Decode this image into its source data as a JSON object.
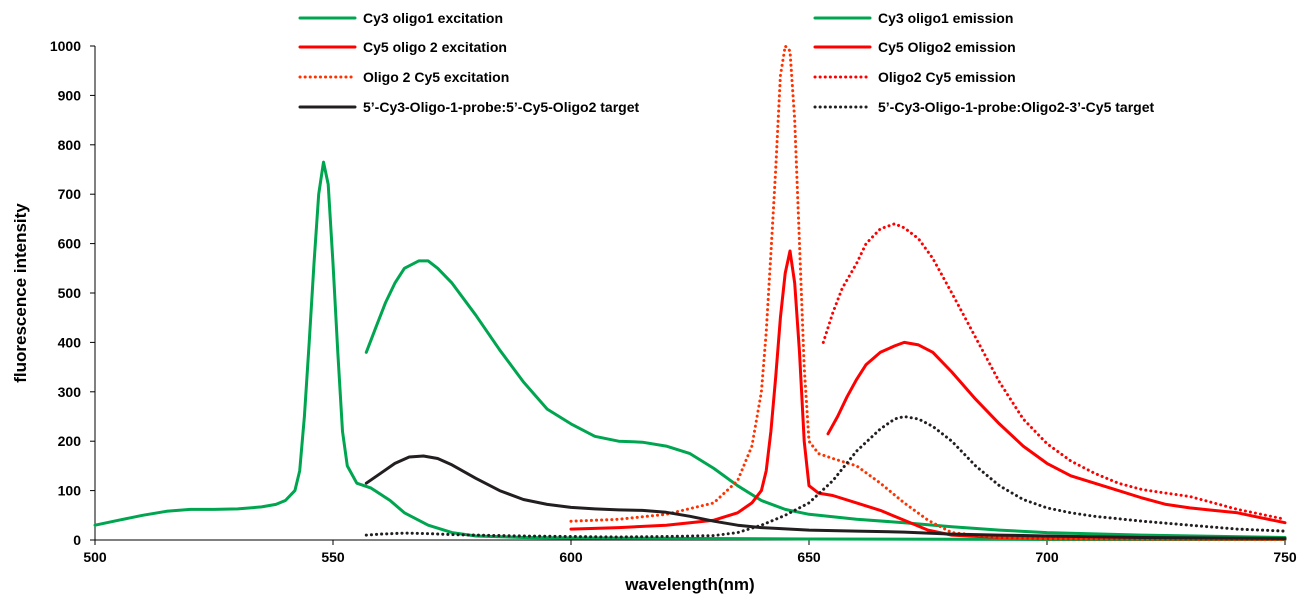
{
  "chart_data": {
    "type": "line",
    "title": "",
    "xlabel": "wavelength(nm)",
    "ylabel": "fluorescence intensity",
    "xlim": [
      500,
      750
    ],
    "ylim": [
      0,
      1000
    ],
    "x_ticks": [
      "500",
      "550",
      "600",
      "650",
      "700",
      "750"
    ],
    "y_ticks": [
      "0",
      "100",
      "200",
      "300",
      "400",
      "500",
      "600",
      "700",
      "800",
      "900",
      "1000"
    ],
    "grid": false,
    "legend_position": "top",
    "series": [
      {
        "name": "Cy3 oligo1 excitation",
        "color": "#00a550",
        "style": "solid",
        "points": [
          [
            500,
            30
          ],
          [
            505,
            40
          ],
          [
            510,
            50
          ],
          [
            515,
            58
          ],
          [
            520,
            62
          ],
          [
            525,
            62
          ],
          [
            530,
            63
          ],
          [
            535,
            67
          ],
          [
            538,
            72
          ],
          [
            540,
            80
          ],
          [
            542,
            100
          ],
          [
            543,
            140
          ],
          [
            544,
            250
          ],
          [
            545,
            400
          ],
          [
            546,
            560
          ],
          [
            547,
            700
          ],
          [
            548,
            765
          ],
          [
            549,
            720
          ],
          [
            550,
            560
          ],
          [
            551,
            380
          ],
          [
            552,
            220
          ],
          [
            553,
            150
          ],
          [
            555,
            115
          ],
          [
            558,
            105
          ],
          [
            562,
            80
          ],
          [
            565,
            55
          ],
          [
            570,
            30
          ],
          [
            575,
            15
          ],
          [
            580,
            8
          ],
          [
            590,
            5
          ],
          [
            600,
            4
          ],
          [
            650,
            2
          ],
          [
            700,
            1
          ],
          [
            750,
            1
          ]
        ]
      },
      {
        "name": "Cy3 oligo1 emission",
        "color": "#00a550",
        "style": "solid",
        "points": [
          [
            557,
            380
          ],
          [
            559,
            430
          ],
          [
            561,
            480
          ],
          [
            563,
            520
          ],
          [
            565,
            550
          ],
          [
            568,
            565
          ],
          [
            570,
            565
          ],
          [
            572,
            550
          ],
          [
            575,
            520
          ],
          [
            580,
            455
          ],
          [
            585,
            385
          ],
          [
            590,
            320
          ],
          [
            595,
            265
          ],
          [
            600,
            235
          ],
          [
            605,
            210
          ],
          [
            610,
            200
          ],
          [
            615,
            198
          ],
          [
            620,
            190
          ],
          [
            625,
            175
          ],
          [
            630,
            145
          ],
          [
            635,
            110
          ],
          [
            640,
            80
          ],
          [
            645,
            62
          ],
          [
            650,
            52
          ],
          [
            660,
            42
          ],
          [
            670,
            35
          ],
          [
            680,
            27
          ],
          [
            690,
            20
          ],
          [
            700,
            15
          ],
          [
            720,
            10
          ],
          [
            750,
            5
          ]
        ]
      },
      {
        "name": "Cy5 oligo 2 excitation",
        "color": "#ff0000",
        "style": "solid",
        "points": [
          [
            600,
            22
          ],
          [
            610,
            25
          ],
          [
            620,
            30
          ],
          [
            630,
            40
          ],
          [
            635,
            55
          ],
          [
            638,
            75
          ],
          [
            640,
            100
          ],
          [
            641,
            140
          ],
          [
            642,
            220
          ],
          [
            643,
            330
          ],
          [
            644,
            450
          ],
          [
            645,
            540
          ],
          [
            646,
            585
          ],
          [
            647,
            520
          ],
          [
            648,
            380
          ],
          [
            649,
            200
          ],
          [
            650,
            110
          ],
          [
            652,
            95
          ],
          [
            655,
            90
          ],
          [
            660,
            75
          ],
          [
            665,
            60
          ],
          [
            670,
            40
          ],
          [
            675,
            20
          ],
          [
            680,
            10
          ],
          [
            690,
            5
          ],
          [
            700,
            3
          ],
          [
            750,
            2
          ]
        ]
      },
      {
        "name": "Cy5 Oligo2 emission",
        "color": "#ff0000",
        "style": "solid",
        "points": [
          [
            654,
            215
          ],
          [
            656,
            250
          ],
          [
            658,
            290
          ],
          [
            660,
            325
          ],
          [
            662,
            355
          ],
          [
            665,
            380
          ],
          [
            668,
            393
          ],
          [
            670,
            400
          ],
          [
            673,
            395
          ],
          [
            676,
            380
          ],
          [
            680,
            340
          ],
          [
            685,
            285
          ],
          [
            690,
            235
          ],
          [
            695,
            190
          ],
          [
            700,
            155
          ],
          [
            705,
            130
          ],
          [
            710,
            115
          ],
          [
            715,
            100
          ],
          [
            720,
            85
          ],
          [
            725,
            72
          ],
          [
            730,
            65
          ],
          [
            735,
            60
          ],
          [
            740,
            55
          ],
          [
            745,
            45
          ],
          [
            750,
            35
          ]
        ]
      },
      {
        "name": "Oligo 2 Cy5 excitation",
        "color": "#ff3300",
        "style": "dotted",
        "points": [
          [
            600,
            38
          ],
          [
            610,
            42
          ],
          [
            620,
            52
          ],
          [
            630,
            75
          ],
          [
            635,
            120
          ],
          [
            638,
            190
          ],
          [
            640,
            300
          ],
          [
            641,
            420
          ],
          [
            642,
            580
          ],
          [
            643,
            750
          ],
          [
            644,
            940
          ],
          [
            645,
            1000
          ],
          [
            646,
            990
          ],
          [
            647,
            850
          ],
          [
            648,
            600
          ],
          [
            649,
            350
          ],
          [
            650,
            200
          ],
          [
            652,
            175
          ],
          [
            655,
            165
          ],
          [
            660,
            150
          ],
          [
            665,
            115
          ],
          [
            670,
            75
          ],
          [
            675,
            40
          ],
          [
            680,
            15
          ],
          [
            690,
            5
          ],
          [
            700,
            2
          ],
          [
            750,
            1
          ]
        ]
      },
      {
        "name": "Oligo2 Cy5 emission",
        "color": "#ff0000",
        "style": "dotted",
        "points": [
          [
            653,
            400
          ],
          [
            655,
            460
          ],
          [
            657,
            510
          ],
          [
            660,
            560
          ],
          [
            662,
            600
          ],
          [
            665,
            630
          ],
          [
            668,
            640
          ],
          [
            670,
            632
          ],
          [
            673,
            610
          ],
          [
            676,
            570
          ],
          [
            680,
            500
          ],
          [
            685,
            410
          ],
          [
            690,
            320
          ],
          [
            695,
            245
          ],
          [
            700,
            195
          ],
          [
            705,
            160
          ],
          [
            710,
            135
          ],
          [
            715,
            115
          ],
          [
            720,
            102
          ],
          [
            725,
            95
          ],
          [
            730,
            88
          ],
          [
            735,
            75
          ],
          [
            740,
            62
          ],
          [
            745,
            52
          ],
          [
            750,
            42
          ]
        ]
      },
      {
        "name": "5’-Cy3-Oligo-1-probe:5’-Cy5-Oligo2 target",
        "color": "#231f20",
        "style": "solid",
        "points": [
          [
            557,
            115
          ],
          [
            560,
            135
          ],
          [
            563,
            155
          ],
          [
            566,
            168
          ],
          [
            569,
            170
          ],
          [
            572,
            165
          ],
          [
            575,
            152
          ],
          [
            580,
            125
          ],
          [
            585,
            100
          ],
          [
            590,
            82
          ],
          [
            595,
            72
          ],
          [
            600,
            66
          ],
          [
            605,
            63
          ],
          [
            610,
            61
          ],
          [
            615,
            60
          ],
          [
            620,
            56
          ],
          [
            625,
            48
          ],
          [
            630,
            38
          ],
          [
            635,
            30
          ],
          [
            640,
            25
          ],
          [
            650,
            20
          ],
          [
            660,
            18
          ],
          [
            670,
            16
          ],
          [
            680,
            12
          ],
          [
            690,
            10
          ],
          [
            700,
            8
          ],
          [
            720,
            5
          ],
          [
            750,
            3
          ]
        ]
      },
      {
        "name": "5’-Cy3-Oligo-1-probe:Oligo2-3’-Cy5 target",
        "color": "#231f20",
        "style": "dotted",
        "points": [
          [
            557,
            10
          ],
          [
            560,
            12
          ],
          [
            565,
            14
          ],
          [
            570,
            13
          ],
          [
            575,
            11
          ],
          [
            580,
            10
          ],
          [
            590,
            8
          ],
          [
            600,
            7
          ],
          [
            610,
            6
          ],
          [
            620,
            7
          ],
          [
            630,
            9
          ],
          [
            635,
            15
          ],
          [
            640,
            30
          ],
          [
            645,
            50
          ],
          [
            650,
            75
          ],
          [
            655,
            120
          ],
          [
            660,
            180
          ],
          [
            665,
            225
          ],
          [
            668,
            245
          ],
          [
            670,
            250
          ],
          [
            673,
            245
          ],
          [
            676,
            230
          ],
          [
            680,
            200
          ],
          [
            685,
            150
          ],
          [
            690,
            110
          ],
          [
            695,
            82
          ],
          [
            700,
            65
          ],
          [
            705,
            55
          ],
          [
            710,
            48
          ],
          [
            720,
            38
          ],
          [
            730,
            30
          ],
          [
            740,
            22
          ],
          [
            750,
            18
          ]
        ]
      }
    ]
  }
}
